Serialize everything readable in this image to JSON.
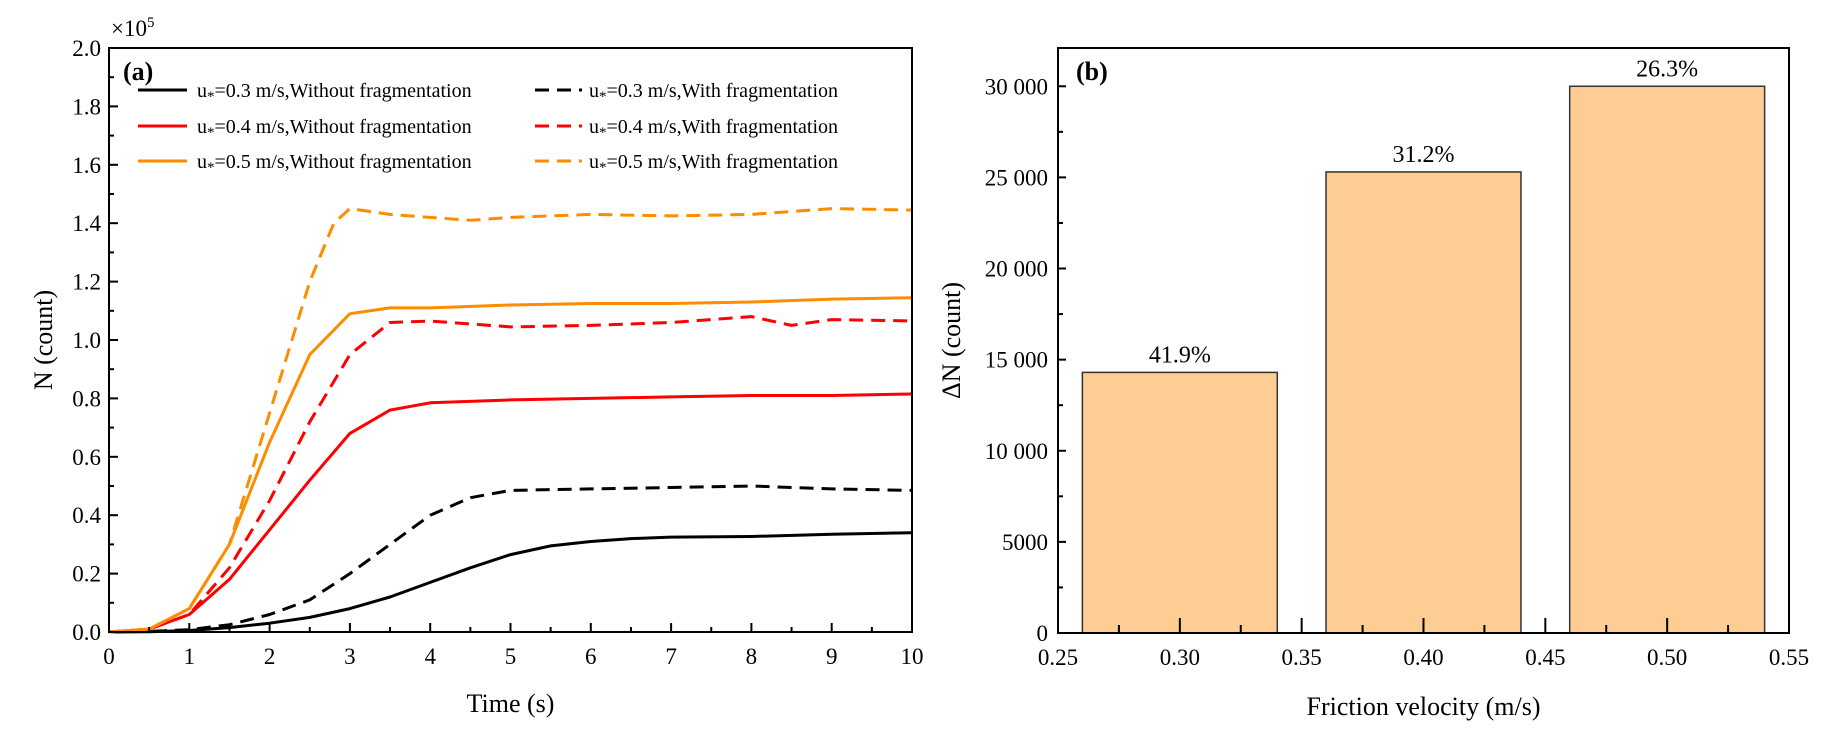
{
  "colors": {
    "black": "#000000",
    "red": "#ff0000",
    "orange": "#ff8c00",
    "bar_fill": "#fdcd94",
    "bar_edge": "#333333"
  },
  "chart_data": [
    {
      "type": "line",
      "panel_label": "(a)",
      "xlabel": "Time (s)",
      "ylabel": "N (count)",
      "y_multiplier": "×10",
      "y_multiplier_exp": "5",
      "xlim": [
        0,
        10
      ],
      "ylim": [
        0,
        2.0
      ],
      "xticks": [
        "0",
        "1",
        "2",
        "3",
        "4",
        "5",
        "6",
        "7",
        "8",
        "9",
        "10"
      ],
      "yticks": [
        "0.0",
        "0.2",
        "0.4",
        "0.6",
        "0.8",
        "1.0",
        "1.2",
        "1.4",
        "1.6",
        "1.8",
        "2.0"
      ],
      "grid": false,
      "legend_placement": "top",
      "series": [
        {
          "name": "u*=0.3 m/s,Without fragmentation",
          "color": "#000000",
          "style": "solid",
          "x": [
            0,
            0.5,
            1,
            1.5,
            2,
            2.5,
            3,
            3.5,
            4,
            4.5,
            5,
            5.5,
            6,
            6.5,
            7,
            8,
            9,
            10
          ],
          "y": [
            0,
            0.001,
            0.005,
            0.015,
            0.03,
            0.05,
            0.08,
            0.12,
            0.17,
            0.22,
            0.265,
            0.295,
            0.31,
            0.32,
            0.325,
            0.327,
            0.335,
            0.34
          ]
        },
        {
          "name": "u*=0.3 m/s,With fragmentation",
          "color": "#000000",
          "style": "dashed",
          "x": [
            0,
            0.5,
            1,
            1.5,
            2,
            2.5,
            3,
            3.5,
            4,
            4.5,
            5,
            6,
            7,
            8,
            9,
            10
          ],
          "y": [
            0,
            0.002,
            0.008,
            0.025,
            0.06,
            0.11,
            0.2,
            0.3,
            0.4,
            0.46,
            0.485,
            0.49,
            0.495,
            0.5,
            0.49,
            0.485
          ]
        },
        {
          "name": "u*=0.4 m/s,Without fragmentation",
          "color": "#ff0000",
          "style": "solid",
          "x": [
            0,
            0.5,
            1,
            1.5,
            2,
            2.5,
            3,
            3.5,
            4,
            5,
            6,
            7,
            8,
            9,
            10
          ],
          "y": [
            0,
            0.01,
            0.06,
            0.18,
            0.35,
            0.52,
            0.68,
            0.76,
            0.785,
            0.795,
            0.8,
            0.805,
            0.81,
            0.81,
            0.815
          ]
        },
        {
          "name": "u*=0.4 m/s,With fragmentation",
          "color": "#ff0000",
          "style": "dashed",
          "x": [
            0,
            0.5,
            1,
            1.5,
            2,
            2.5,
            3,
            3.5,
            4,
            5,
            6,
            7,
            8,
            8.5,
            9,
            10
          ],
          "y": [
            0,
            0.01,
            0.06,
            0.22,
            0.45,
            0.72,
            0.95,
            1.06,
            1.065,
            1.045,
            1.05,
            1.06,
            1.08,
            1.05,
            1.07,
            1.065
          ]
        },
        {
          "name": "u*=0.5 m/s,Without fragmentation",
          "color": "#ff8c00",
          "style": "solid",
          "x": [
            0,
            0.5,
            1,
            1.5,
            2,
            2.5,
            3,
            3.5,
            4,
            5,
            6,
            7,
            8,
            9,
            10
          ],
          "y": [
            0,
            0.01,
            0.08,
            0.3,
            0.65,
            0.95,
            1.09,
            1.11,
            1.11,
            1.12,
            1.125,
            1.125,
            1.13,
            1.14,
            1.145
          ]
        },
        {
          "name": "u*=0.5 m/s,With fragmentation",
          "color": "#ff8c00",
          "style": "dashed",
          "x": [
            0,
            0.5,
            1,
            1.5,
            2,
            2.5,
            2.8,
            3,
            3.5,
            4,
            4.5,
            5,
            6,
            7,
            8,
            9,
            10
          ],
          "y": [
            0,
            0.01,
            0.08,
            0.3,
            0.75,
            1.2,
            1.4,
            1.45,
            1.43,
            1.42,
            1.41,
            1.42,
            1.43,
            1.425,
            1.43,
            1.45,
            1.445
          ]
        }
      ]
    },
    {
      "type": "bar",
      "panel_label": "(b)",
      "xlabel": "Friction velocity (m/s)",
      "ylabel": "ΔN (count)",
      "xlim": [
        0.25,
        0.55
      ],
      "ylim": [
        0,
        32100
      ],
      "xticks": [
        "0.25",
        "0.30",
        "0.35",
        "0.40",
        "0.45",
        "0.50",
        "0.55"
      ],
      "yticks": [
        "0",
        "5000",
        "10 000",
        "15 000",
        "20 000",
        "25 000",
        "30 000"
      ],
      "grid": false,
      "bar_width": 0.08,
      "categories": [
        0.3,
        0.4,
        0.5
      ],
      "values": [
        14300,
        25300,
        30000
      ],
      "data_labels": [
        "41.9%",
        "31.2%",
        "26.3%"
      ]
    }
  ]
}
